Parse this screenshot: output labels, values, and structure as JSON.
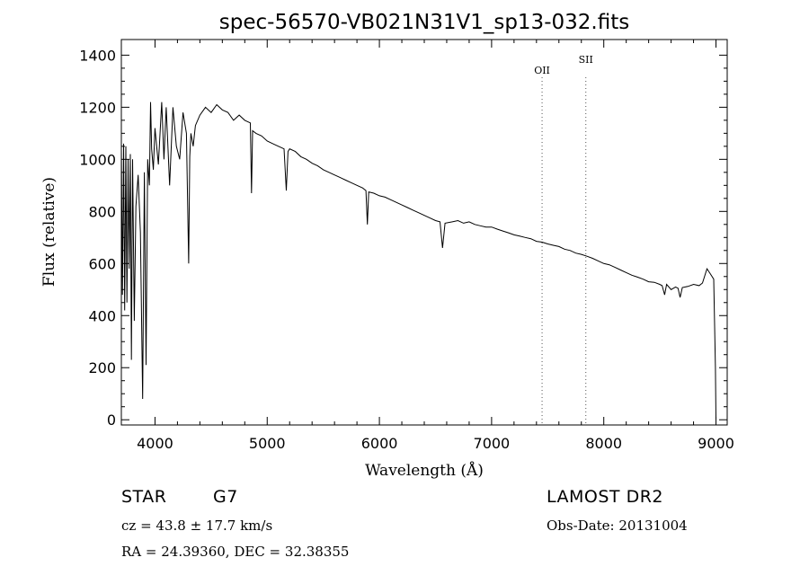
{
  "chart_data": {
    "type": "line",
    "title": "spec-56570-VB021N31V1_sp13-032.fits",
    "xlabel": "Wavelength (Å)",
    "ylabel": "Flux (relative)",
    "xlim": [
      3700,
      9100
    ],
    "ylim": [
      -20,
      1460
    ],
    "xticks": [
      4000,
      5000,
      6000,
      7000,
      8000,
      9000
    ],
    "yticks": [
      0,
      200,
      400,
      600,
      800,
      1000,
      1200,
      1400
    ],
    "grid": false,
    "series": [
      {
        "x": [
          3700,
          3710,
          3720,
          3730,
          3740,
          3750,
          3760,
          3770,
          3780,
          3790,
          3800,
          3815,
          3830,
          3850,
          3870,
          3890,
          3905,
          3920,
          3935,
          3950,
          3960,
          3970,
          3985,
          4000,
          4030,
          4060,
          4080,
          4100,
          4130,
          4160,
          4190,
          4220,
          4250,
          4280,
          4300,
          4310,
          4320,
          4340,
          4360,
          4400,
          4450,
          4500,
          4550,
          4600,
          4650,
          4700,
          4750,
          4800,
          4850,
          4860,
          4870,
          4900,
          4950,
          5000,
          5050,
          5100,
          5150,
          5170,
          5185,
          5200,
          5250,
          5300,
          5350,
          5400,
          5450,
          5500,
          5550,
          5600,
          5650,
          5700,
          5750,
          5800,
          5850,
          5880,
          5893,
          5905,
          5950,
          6000,
          6050,
          6100,
          6150,
          6200,
          6250,
          6300,
          6350,
          6400,
          6450,
          6500,
          6540,
          6563,
          6585,
          6650,
          6700,
          6750,
          6800,
          6850,
          6900,
          6950,
          7000,
          7050,
          7100,
          7150,
          7200,
          7250,
          7300,
          7350,
          7400,
          7450,
          7500,
          7550,
          7600,
          7650,
          7700,
          7750,
          7800,
          7850,
          7900,
          7950,
          8000,
          8050,
          8100,
          8150,
          8200,
          8250,
          8300,
          8350,
          8400,
          8450,
          8498,
          8520,
          8542,
          8560,
          8600,
          8640,
          8662,
          8680,
          8700,
          8750,
          8800,
          8850,
          8880,
          8920,
          8950,
          8980,
          8995,
          9000
        ],
        "y": [
          1040,
          480,
          1060,
          420,
          1050,
          450,
          1000,
          580,
          1020,
          230,
          1000,
          380,
          820,
          940,
          720,
          80,
          950,
          210,
          1000,
          900,
          1220,
          1040,
          960,
          1120,
          980,
          1220,
          1000,
          1200,
          900,
          1200,
          1050,
          1000,
          1180,
          1100,
          600,
          1010,
          1100,
          1050,
          1130,
          1170,
          1200,
          1180,
          1210,
          1190,
          1180,
          1150,
          1170,
          1150,
          1140,
          870,
          1110,
          1100,
          1090,
          1070,
          1060,
          1050,
          1040,
          880,
          1030,
          1040,
          1030,
          1010,
          1000,
          985,
          975,
          960,
          950,
          940,
          930,
          920,
          910,
          900,
          890,
          880,
          750,
          875,
          870,
          860,
          855,
          845,
          835,
          825,
          815,
          805,
          795,
          785,
          775,
          765,
          760,
          660,
          755,
          760,
          765,
          755,
          760,
          750,
          745,
          740,
          740,
          732,
          725,
          718,
          710,
          705,
          700,
          695,
          685,
          682,
          675,
          670,
          665,
          655,
          650,
          640,
          635,
          628,
          620,
          610,
          600,
          595,
          585,
          575,
          565,
          555,
          548,
          540,
          530,
          528,
          520,
          515,
          480,
          520,
          500,
          510,
          505,
          470,
          508,
          512,
          520,
          515,
          525,
          580,
          560,
          540,
          200,
          0
        ]
      }
    ],
    "vlines": [
      {
        "x": 7450,
        "label": "OII"
      },
      {
        "x": 7840,
        "label": "SII"
      }
    ]
  },
  "info": {
    "object_class": "STAR",
    "subclass": "G7",
    "survey": "LAMOST DR2",
    "cz": "cz = 43.8 ± 17.7 km/s",
    "obs_date": "Obs-Date: 20131004",
    "coords": "RA =  24.39360, DEC =  32.38355"
  }
}
